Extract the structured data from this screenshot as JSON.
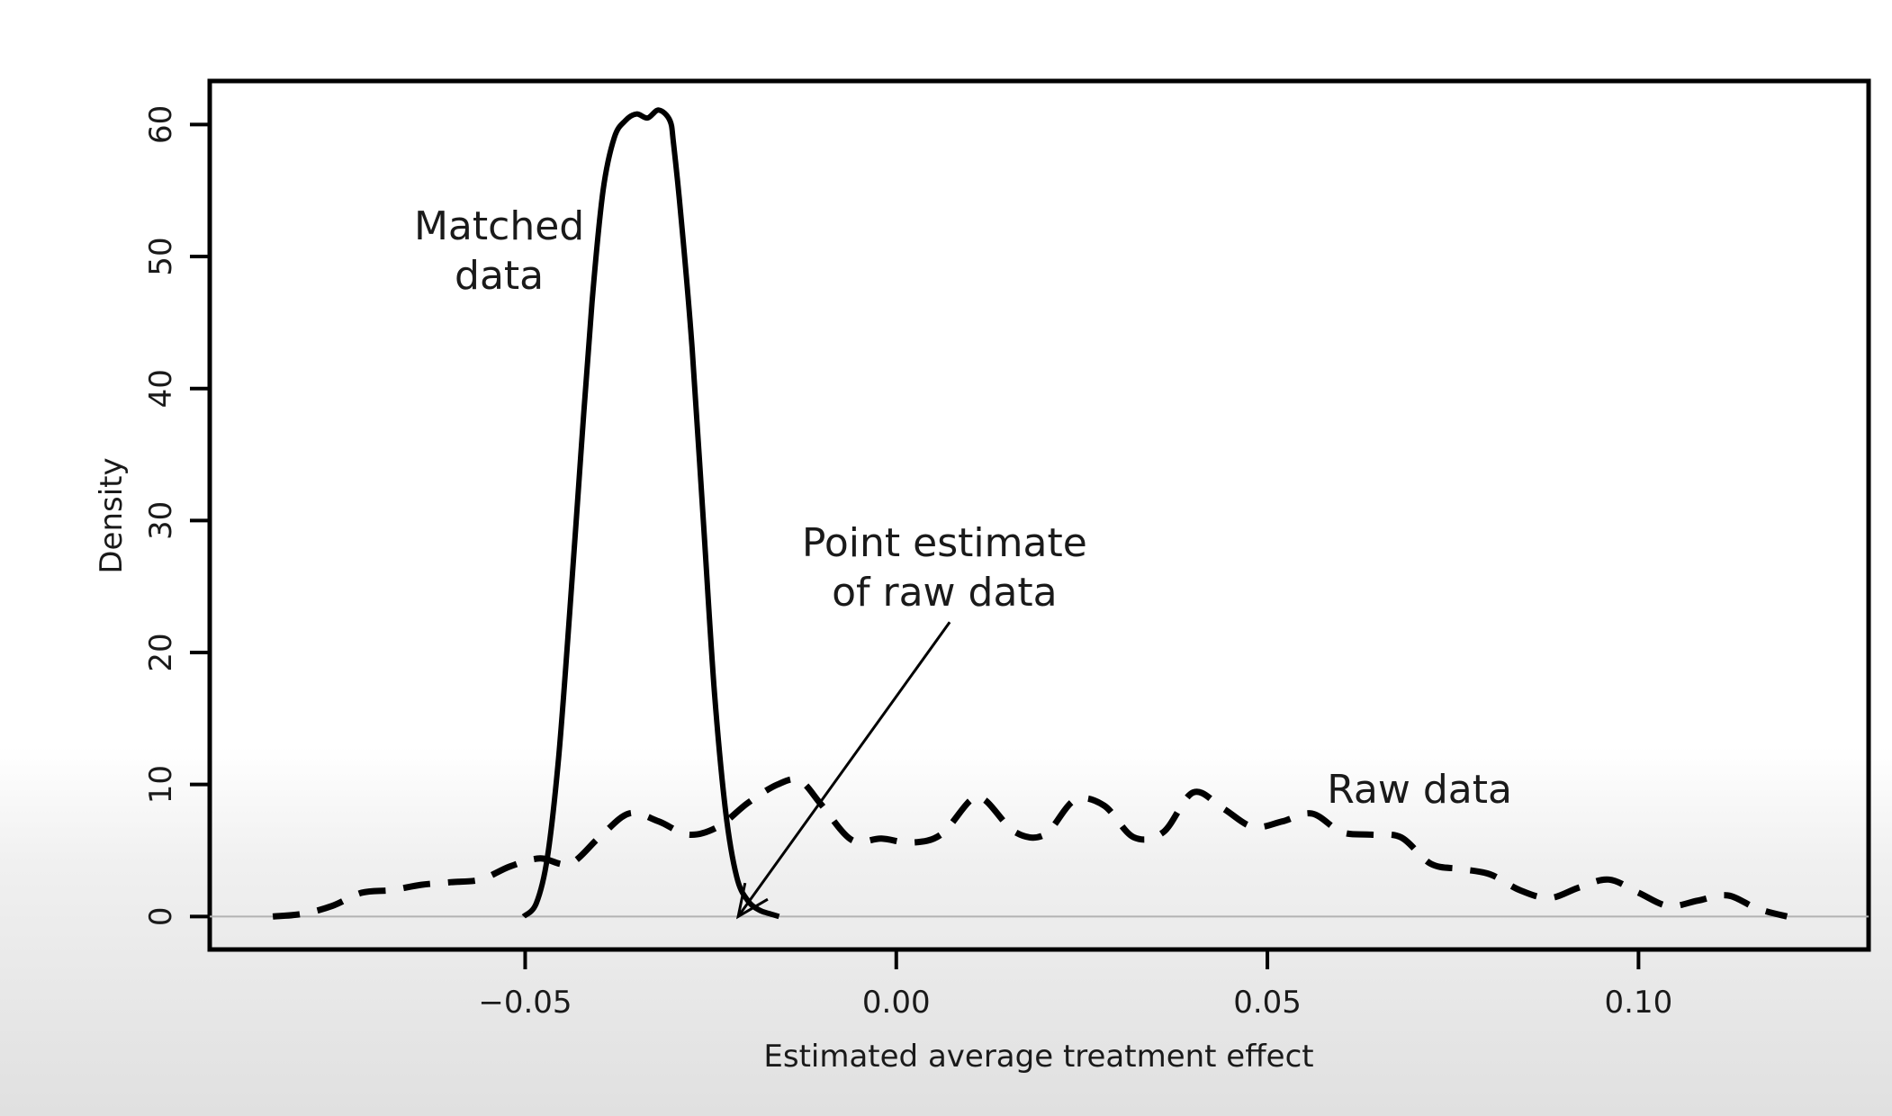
{
  "chart_data": {
    "type": "line",
    "title": "",
    "xlabel": "Estimated average treatment effect",
    "ylabel": "Density",
    "xlim": [
      -0.0925,
      0.131
    ],
    "ylim": [
      -2.5,
      63.3
    ],
    "xticks": [
      -0.05,
      0.0,
      0.05,
      0.1
    ],
    "xtick_labels": [
      "−0.05",
      "0.00",
      "0.05",
      "0.10"
    ],
    "yticks": [
      0,
      10,
      20,
      30,
      40,
      50,
      60
    ],
    "ytick_labels": [
      "0",
      "10",
      "20",
      "30",
      "40",
      "50",
      "60"
    ],
    "grid": false,
    "legend": "none",
    "reference_line_y": 0,
    "series": [
      {
        "name": "Matched data",
        "style": "solid",
        "x": [
          -0.0502,
          -0.0485,
          -0.047,
          -0.0455,
          -0.044,
          -0.0425,
          -0.041,
          -0.0395,
          -0.038,
          -0.0365,
          -0.035,
          -0.0335,
          -0.032,
          -0.0305,
          -0.03,
          -0.029,
          -0.0275,
          -0.026,
          -0.0245,
          -0.023,
          -0.0215,
          -0.02,
          -0.0185,
          -0.017,
          -0.0158
        ],
        "y": [
          0,
          1.0,
          4.5,
          12.0,
          23.0,
          35.0,
          46.5,
          55.0,
          59.0,
          60.3,
          60.8,
          60.5,
          61.1,
          60.3,
          58.5,
          53.0,
          43.0,
          30.0,
          17.0,
          8.0,
          3.0,
          1.2,
          0.5,
          0.2,
          0
        ]
      },
      {
        "name": "Raw data",
        "style": "dashed",
        "x": [
          -0.084,
          -0.08,
          -0.076,
          -0.072,
          -0.068,
          -0.064,
          -0.06,
          -0.056,
          -0.052,
          -0.048,
          -0.044,
          -0.04,
          -0.036,
          -0.032,
          -0.028,
          -0.024,
          -0.02,
          -0.016,
          -0.013,
          -0.01,
          -0.006,
          -0.002,
          0.002,
          0.006,
          0.01,
          0.012,
          0.016,
          0.02,
          0.024,
          0.028,
          0.032,
          0.036,
          0.04,
          0.044,
          0.048,
          0.052,
          0.056,
          0.06,
          0.064,
          0.068,
          0.072,
          0.076,
          0.08,
          0.084,
          0.088,
          0.092,
          0.096,
          0.1,
          0.104,
          0.108,
          0.112,
          0.116,
          0.12
        ],
        "y": [
          0,
          0.2,
          0.8,
          1.8,
          2.0,
          2.4,
          2.6,
          2.8,
          3.8,
          4.4,
          4.0,
          6.0,
          7.8,
          7.2,
          6.2,
          6.8,
          8.6,
          10.0,
          10.3,
          8.4,
          5.8,
          5.9,
          5.6,
          6.2,
          8.8,
          8.8,
          6.4,
          6.2,
          8.8,
          8.4,
          6.0,
          6.4,
          9.4,
          8.2,
          6.8,
          7.2,
          7.8,
          6.4,
          6.2,
          6.0,
          4.0,
          3.6,
          3.2,
          2.0,
          1.4,
          2.2,
          2.8,
          1.8,
          0.8,
          1.2,
          1.6,
          0.6,
          0
        ]
      }
    ],
    "annotations": [
      {
        "text_lines": [
          "Matched",
          "data"
        ],
        "x": -0.0535,
        "y": 51.3
      },
      {
        "text_lines": [
          "Point estimate",
          "of raw data"
        ],
        "x": 0.0065,
        "y": 27.3
      },
      {
        "text_lines": [
          "Raw data"
        ],
        "x": 0.0705,
        "y": 8.6
      }
    ],
    "arrow": {
      "from": [
        0.0072,
        22.3
      ],
      "to": [
        -0.0213,
        0
      ]
    }
  }
}
